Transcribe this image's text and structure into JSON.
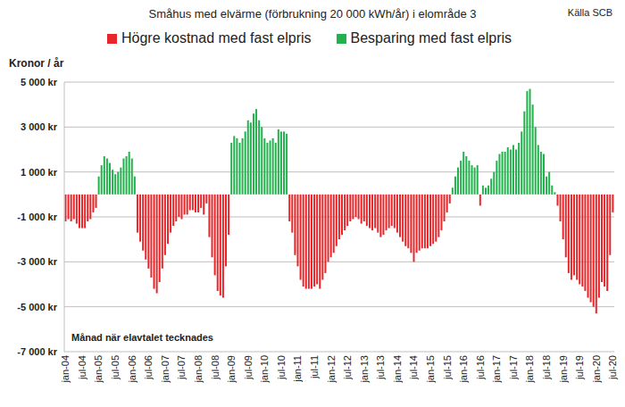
{
  "chart_data": {
    "type": "bar",
    "title": "Småhus med elvärme (förbrukning 20 000 kWh/år) i elområde 3",
    "source": "Källa SCB",
    "y_label": "Kronor / år",
    "x_label": "Månad när elavtalet tecknades",
    "stacked": true,
    "grid": true,
    "legend": "top",
    "categories": [
      "jan-04",
      null,
      null,
      null,
      null,
      null,
      "jul-04",
      null,
      null,
      null,
      null,
      null,
      "jan-05",
      null,
      null,
      null,
      null,
      null,
      "jul-05",
      null,
      null,
      null,
      null,
      null,
      "jan-06",
      null,
      null,
      null,
      null,
      null,
      "jul-06",
      null,
      null,
      null,
      null,
      null,
      "jan-07",
      null,
      null,
      null,
      null,
      null,
      "jul-07",
      null,
      null,
      null,
      null,
      null,
      "jan-08",
      null,
      null,
      null,
      null,
      null,
      "jul-08",
      null,
      null,
      null,
      null,
      null,
      "jan-09",
      null,
      null,
      null,
      null,
      null,
      "jul-09",
      null,
      null,
      null,
      null,
      null,
      "jan-10",
      null,
      null,
      null,
      null,
      null,
      "jul-10",
      null,
      null,
      null,
      null,
      null,
      "jan-11",
      null,
      null,
      null,
      null,
      null,
      "jul-11",
      null,
      null,
      null,
      null,
      null,
      "jan-12",
      null,
      null,
      null,
      null,
      null,
      "jul-12",
      null,
      null,
      null,
      null,
      null,
      "jan-13",
      null,
      null,
      null,
      null,
      null,
      "jul-13",
      null,
      null,
      null,
      null,
      null,
      "jan-14",
      null,
      null,
      null,
      null,
      null,
      "jul-14",
      null,
      null,
      null,
      null,
      null,
      "jan-15",
      null,
      null,
      null,
      null,
      null,
      "jul-15",
      null,
      null,
      null,
      null,
      null,
      "jan-16",
      null,
      null,
      null,
      null,
      null,
      "jul-16",
      null,
      null,
      null,
      null,
      null,
      "jan-17",
      null,
      null,
      null,
      null,
      null,
      "jul-17",
      null,
      null,
      null,
      null,
      null,
      "jan-18",
      null,
      null,
      null,
      null,
      null,
      "jul-18",
      null,
      null,
      null,
      null,
      null,
      "jan-19",
      null,
      null,
      null,
      null,
      null,
      "jul-19",
      null,
      null,
      null,
      null,
      null,
      "jan-20",
      null,
      null,
      null,
      null,
      null,
      "jul-20"
    ],
    "series": [
      {
        "name": "Högre kostnad med fast elpris",
        "color": "#e8262a",
        "values": [
          -1200,
          -1100,
          -1200,
          -1100,
          -1300,
          -1500,
          -1500,
          -1500,
          -1200,
          -1100,
          -800,
          -600,
          null,
          null,
          null,
          null,
          null,
          null,
          null,
          null,
          null,
          null,
          null,
          null,
          null,
          null,
          -1700,
          -2100,
          -2500,
          -2900,
          -3300,
          -3700,
          -4200,
          -4400,
          -3900,
          -3300,
          -2700,
          -2200,
          -1700,
          -1400,
          -1200,
          -1000,
          -1100,
          -900,
          -900,
          -700,
          -700,
          -800,
          -800,
          -600,
          -900,
          -400,
          -1900,
          -2800,
          -3600,
          -4300,
          -4500,
          -4600,
          -3200,
          -1800,
          null,
          null,
          null,
          null,
          null,
          null,
          null,
          null,
          null,
          null,
          null,
          null,
          null,
          null,
          null,
          null,
          null,
          null,
          null,
          null,
          null,
          -1200,
          -1700,
          -2700,
          -3200,
          -3800,
          -4100,
          -4200,
          -4200,
          -4200,
          -4100,
          -4000,
          -4200,
          -3800,
          -3500,
          -3000,
          -2800,
          -2600,
          -2300,
          -2000,
          -1800,
          -1600,
          -1400,
          -1200,
          -1100,
          -1000,
          -1100,
          -1300,
          -1200,
          -1400,
          -1500,
          -1600,
          -1500,
          -1700,
          -1900,
          -1800,
          -1600,
          -1500,
          -1400,
          -1500,
          -1700,
          -1900,
          -2100,
          -2300,
          -2400,
          -2600,
          -3000,
          -2600,
          -2500,
          -2400,
          -2400,
          -2400,
          -2300,
          -2200,
          -2100,
          -1900,
          -1600,
          -1200,
          -800,
          -400,
          null,
          null,
          null,
          null,
          null,
          null,
          null,
          null,
          null,
          null,
          -500,
          null,
          null,
          null,
          null,
          null,
          null,
          null,
          null,
          null,
          null,
          null,
          null,
          null,
          null,
          null,
          null,
          null,
          null,
          null,
          null,
          null,
          null,
          null,
          null,
          null,
          null,
          null,
          -500,
          -1200,
          -2000,
          -2800,
          -3500,
          -3800,
          -3600,
          -3800,
          -4000,
          -4100,
          -4300,
          -4600,
          -4800,
          -5000,
          -5300,
          -4600,
          -3900,
          -4100,
          -4300,
          -2700,
          -800
        ]
      },
      {
        "name": "Besparing med fast elpris",
        "color": "#22b14c",
        "values": [
          null,
          null,
          null,
          null,
          null,
          null,
          null,
          null,
          null,
          null,
          null,
          null,
          800,
          1300,
          1700,
          1600,
          1400,
          1100,
          900,
          1000,
          1200,
          1600,
          1700,
          1900,
          1600,
          800,
          null,
          null,
          null,
          null,
          null,
          null,
          null,
          null,
          null,
          null,
          null,
          null,
          null,
          null,
          null,
          null,
          null,
          null,
          null,
          null,
          null,
          null,
          null,
          null,
          null,
          null,
          null,
          null,
          null,
          null,
          null,
          null,
          null,
          null,
          2300,
          2600,
          2500,
          2300,
          2500,
          2800,
          3300,
          3200,
          3600,
          3800,
          3300,
          3000,
          2500,
          2300,
          2400,
          2500,
          2300,
          2900,
          2800,
          2800,
          2700,
          null,
          null,
          null,
          null,
          null,
          null,
          null,
          null,
          null,
          null,
          null,
          null,
          null,
          null,
          null,
          null,
          null,
          null,
          null,
          null,
          null,
          null,
          null,
          null,
          null,
          null,
          null,
          null,
          null,
          null,
          null,
          null,
          null,
          null,
          null,
          null,
          null,
          null,
          null,
          null,
          null,
          null,
          null,
          null,
          null,
          null,
          null,
          null,
          null,
          null,
          null,
          null,
          null,
          null,
          null,
          null,
          null,
          null,
          null,
          300,
          800,
          1200,
          1500,
          1900,
          1700,
          1500,
          1300,
          1200,
          1300,
          null,
          400,
          300,
          400,
          700,
          1000,
          1500,
          1800,
          1900,
          1900,
          2100,
          2000,
          2200,
          2000,
          2300,
          2800,
          3700,
          4600,
          4700,
          4000,
          3000,
          2200,
          1900,
          1800,
          800,
          1000,
          400,
          100,
          null,
          null,
          null,
          null,
          null,
          null,
          null,
          null,
          null,
          null,
          null,
          null,
          null,
          null,
          null,
          null,
          null,
          null,
          null,
          null,
          null
        ]
      }
    ],
    "ylim": [
      -7000,
      5000
    ],
    "yticks": [
      {
        "value": -7000,
        "label": "-7 000 kr"
      },
      {
        "value": -5000,
        "label": "-5 000 kr"
      },
      {
        "value": -3000,
        "label": "-3 000 kr"
      },
      {
        "value": -1000,
        "label": "-1 000 kr"
      },
      {
        "value": 1000,
        "label": "1 000 kr"
      },
      {
        "value": 3000,
        "label": "3 000 kr"
      },
      {
        "value": 5000,
        "label": "5 000 kr"
      }
    ]
  }
}
